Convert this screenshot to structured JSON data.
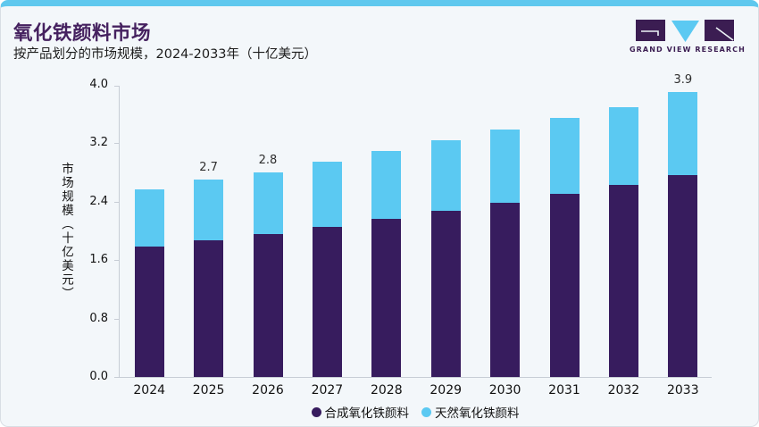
{
  "header": {
    "title": "氧化铁颜料市场",
    "subtitle": "按产品划分的市场规模，2024-2033年（十亿美元）"
  },
  "logo": {
    "name": "grand-view-research",
    "text": "GRAND VIEW RESEARCH",
    "purple": "#3b1d52",
    "blue": "#5bc9f2"
  },
  "colors": {
    "top_accent": "#5fc8ee",
    "card_background": "#f3f7fa",
    "card_border": "#d8dee4",
    "axis_line": "#c7cdd5",
    "title_text": "#45215f",
    "body_text": "#1c1c1c",
    "synthetic_bar": "#371c5e",
    "natural_bar": "#5bc9f2"
  },
  "chart_data": {
    "type": "bar",
    "stacked": true,
    "title": "氧化铁颜料市场",
    "subtitle": "按产品划分的市场规模，2024-2033年（十亿美元）",
    "xlabel": "",
    "ylabel": "市场规模（十亿美元）",
    "categories": [
      "2024",
      "2025",
      "2026",
      "2027",
      "2028",
      "2029",
      "2030",
      "2031",
      "2032",
      "2033"
    ],
    "series": [
      {
        "name": "合成氧化铁颜料",
        "color": "#371c5e",
        "values": [
          1.79,
          1.87,
          1.96,
          2.06,
          2.16,
          2.27,
          2.39,
          2.51,
          2.63,
          2.76
        ]
      },
      {
        "name": "天然氧化铁颜料",
        "color": "#5bc9f2",
        "values": [
          0.78,
          0.83,
          0.84,
          0.89,
          0.94,
          0.97,
          1.0,
          1.04,
          1.07,
          1.14
        ]
      }
    ],
    "totals": [
      2.57,
      2.7,
      2.8,
      2.95,
      3.1,
      3.24,
      3.39,
      3.55,
      3.7,
      3.9
    ],
    "labels": [
      "",
      "2.7",
      "2.8",
      "",
      "",
      "",
      "",
      "",
      "",
      "3.9"
    ],
    "y_ticks": [
      "0.0",
      "0.8",
      "1.6",
      "2.4",
      "3.2",
      "4.0"
    ],
    "ylim": [
      0,
      4.0
    ],
    "grid": false,
    "legend_position": "bottom"
  }
}
